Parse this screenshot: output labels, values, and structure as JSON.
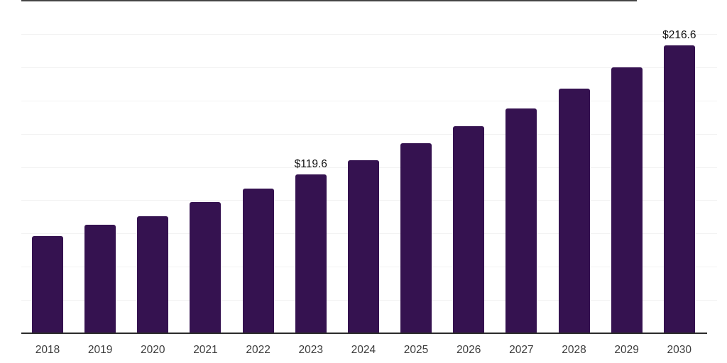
{
  "chart": {
    "background_color": "#ffffff",
    "bar_color": "#351250",
    "axis_line_color": "#2b2b2b",
    "top_border_color": "#454545",
    "gridline_color": "#f2f2f2",
    "tick_label_color": "#3c3c3c",
    "data_label_color": "#111111"
  },
  "chart_data": {
    "type": "bar",
    "categories": [
      "2018",
      "2019",
      "2020",
      "2021",
      "2022",
      "2023",
      "2024",
      "2025",
      "2026",
      "2027",
      "2028",
      "2029",
      "2030"
    ],
    "values": [
      72.9,
      81.4,
      87.8,
      98.4,
      108.5,
      119.6,
      130.3,
      142.6,
      155.9,
      169.2,
      184.0,
      200.0,
      216.6
    ],
    "data_labels": [
      {
        "category": "2023",
        "text": "$119.6"
      },
      {
        "category": "2030",
        "text": "$216.6"
      }
    ],
    "xlabel": "",
    "ylabel": "",
    "ylim": [
      0,
      250
    ],
    "gridline_interval": 25,
    "grid": true,
    "legend_position": "none",
    "note": "Only 2023 and 2030 bars carry visible value labels; other values estimated from gridlines (25 units per line)."
  }
}
